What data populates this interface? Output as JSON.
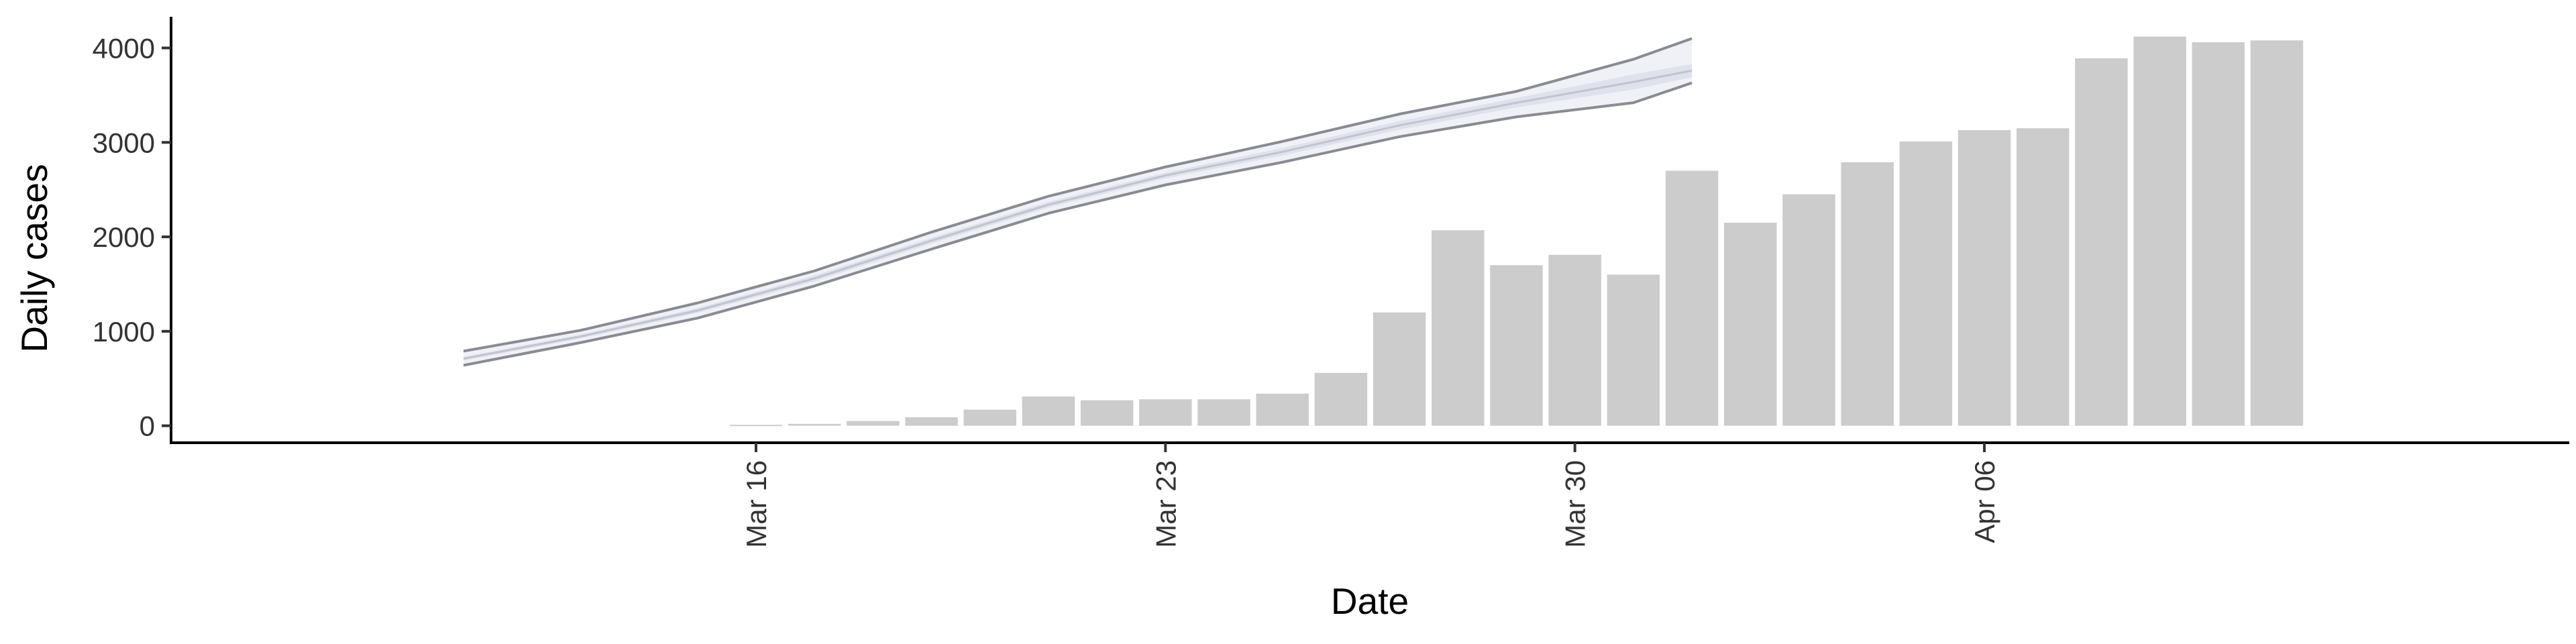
{
  "chart_data": {
    "type": "bar",
    "title": "",
    "xlabel": "Date",
    "ylabel": "Daily cases",
    "ylim": [
      -180,
      4330
    ],
    "yticks": [
      0,
      1000,
      2000,
      3000,
      4000
    ],
    "xlim": [
      "2020-03-06",
      "2020-04-16"
    ],
    "xticks": [
      {
        "date": "2020-03-16",
        "label": "Mar 16"
      },
      {
        "date": "2020-03-23",
        "label": "Mar 23"
      },
      {
        "date": "2020-03-30",
        "label": "Mar 30"
      },
      {
        "date": "2020-04-06",
        "label": "Apr 06"
      }
    ],
    "grid": false,
    "legend": "none",
    "bars": {
      "color": "#cccccc",
      "x": [
        "2020-03-16",
        "2020-03-17",
        "2020-03-18",
        "2020-03-19",
        "2020-03-20",
        "2020-03-21",
        "2020-03-22",
        "2020-03-23",
        "2020-03-24",
        "2020-03-25",
        "2020-03-26",
        "2020-03-27",
        "2020-03-28",
        "2020-03-29",
        "2020-03-30",
        "2020-03-31",
        "2020-04-01",
        "2020-04-02",
        "2020-04-03",
        "2020-04-04",
        "2020-04-05",
        "2020-04-06",
        "2020-04-07",
        "2020-04-08",
        "2020-04-09",
        "2020-04-10",
        "2020-04-11"
      ],
      "values": [
        10,
        20,
        50,
        90,
        170,
        310,
        270,
        280,
        280,
        340,
        560,
        1200,
        2070,
        1700,
        1810,
        1600,
        2700,
        2150,
        2450,
        2790,
        3010,
        3130,
        3150,
        3890,
        4120,
        4060,
        4080
      ]
    },
    "projection": {
      "x": [
        "2020-03-11",
        "2020-03-13",
        "2020-03-15",
        "2020-03-17",
        "2020-03-19",
        "2020-03-21",
        "2020-03-23",
        "2020-03-25",
        "2020-03-27",
        "2020-03-29",
        "2020-03-31",
        "2020-04-01"
      ],
      "median": [
        710,
        945,
        1220,
        1560,
        1960,
        2340,
        2650,
        2900,
        3180,
        3420,
        3640,
        3760
      ],
      "inner_lower": [
        690,
        925,
        1195,
        1530,
        1930,
        2310,
        2620,
        2860,
        3135,
        3370,
        3560,
        3690
      ],
      "inner_upper": [
        730,
        965,
        1245,
        1590,
        1990,
        2370,
        2680,
        2940,
        3225,
        3470,
        3720,
        3830
      ],
      "outer_lower": [
        640,
        880,
        1140,
        1480,
        1870,
        2250,
        2550,
        2790,
        3060,
        3270,
        3420,
        3630
      ],
      "outer_upper": [
        790,
        1010,
        1300,
        1640,
        2050,
        2430,
        2740,
        3010,
        3300,
        3540,
        3880,
        4100
      ],
      "band_color": "#dde0ec",
      "line_color": "#8a8a92"
    }
  }
}
